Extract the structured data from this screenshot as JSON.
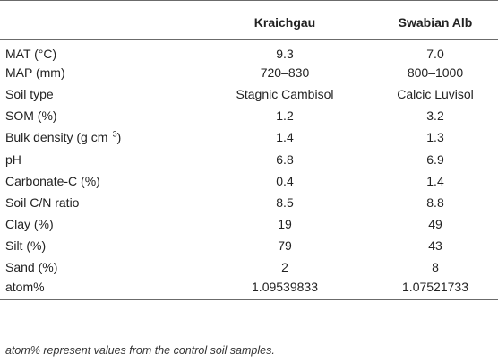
{
  "table": {
    "headers": [
      "",
      "Kraichgau",
      "Swabian Alb"
    ],
    "rows": [
      {
        "label": "MAT (°C)",
        "kraichgau": "9.3",
        "swabian_alb": "7.0"
      },
      {
        "label": "MAP (mm)",
        "kraichgau": "720–830",
        "swabian_alb": "800–1000"
      },
      {
        "label": "Soil type",
        "kraichgau": "Stagnic Cambisol",
        "swabian_alb": "Calcic Luvisol"
      },
      {
        "label": "SOM (%)",
        "kraichgau": "1.2",
        "swabian_alb": "3.2"
      },
      {
        "label": "Bulk density (g cm",
        "label_sup": "−3",
        "label_suffix": ")",
        "kraichgau": "1.4",
        "swabian_alb": "1.3"
      },
      {
        "label": "pH",
        "kraichgau": "6.8",
        "swabian_alb": "6.9"
      },
      {
        "label": "Carbonate-C (%)",
        "kraichgau": "0.4",
        "swabian_alb": "1.4"
      },
      {
        "label": "Soil C/N ratio",
        "kraichgau": "8.5",
        "swabian_alb": "8.8"
      },
      {
        "label": "Clay (%)",
        "kraichgau": "19",
        "swabian_alb": "49"
      },
      {
        "label": "Silt (%)",
        "kraichgau": "79",
        "swabian_alb": "43"
      },
      {
        "label": "Sand (%)",
        "kraichgau": "2",
        "swabian_alb": "8"
      },
      {
        "label": "atom%",
        "kraichgau": "1.09539833",
        "swabian_alb": "1.07521733"
      }
    ]
  },
  "footnote": "atom% represent values from the control soil samples."
}
